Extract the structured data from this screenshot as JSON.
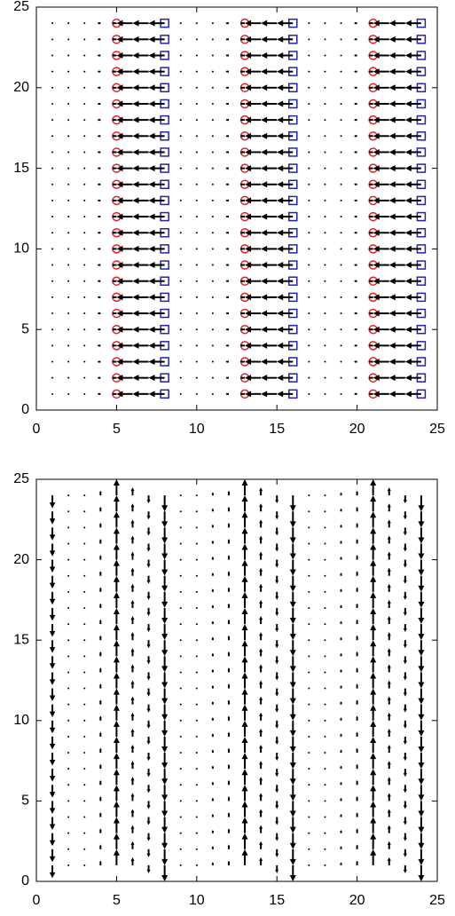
{
  "chart_data": [
    {
      "type": "quiver",
      "color": "#000000",
      "x": [
        1,
        2,
        3,
        4,
        5,
        6,
        7,
        8,
        9,
        10,
        11,
        12,
        13,
        14,
        15,
        16,
        17,
        18,
        19,
        20,
        21,
        22,
        23,
        24
      ],
      "y": [
        1,
        2,
        3,
        4,
        5,
        6,
        7,
        8,
        9,
        10,
        11,
        12,
        13,
        14,
        15,
        16,
        17,
        18,
        19,
        20,
        21,
        22,
        23,
        24
      ],
      "u": [
        -0.1,
        -0.1,
        -0.15,
        -0.2,
        -0.3,
        -1,
        -1,
        -1,
        -0.1,
        -0.1,
        -0.15,
        -0.2,
        -0.3,
        -1,
        -1,
        -1,
        -0.1,
        -0.1,
        -0.15,
        -0.2,
        -0.3,
        -1,
        -1,
        -1
      ],
      "v": [
        0,
        0,
        0,
        0,
        0,
        0,
        0,
        0,
        0,
        0,
        0,
        0,
        0,
        0,
        0,
        0,
        0,
        0,
        0,
        0,
        0,
        0,
        0,
        0
      ],
      "markers": [
        {
          "shape": "circle",
          "color": "#dd2222",
          "x": [
            5,
            13,
            21
          ]
        },
        {
          "shape": "square",
          "color": "#2222aa",
          "x": [
            8,
            16,
            24
          ]
        }
      ],
      "xlim": [
        0,
        25
      ],
      "ylim": [
        0,
        25
      ],
      "xticks": [
        0,
        5,
        10,
        15,
        20,
        25
      ],
      "yticks": [
        0,
        5,
        10,
        15,
        20,
        25
      ]
    },
    {
      "type": "quiver",
      "color": "#000000",
      "x": [
        1,
        2,
        3,
        4,
        5,
        6,
        7,
        8,
        9,
        10,
        11,
        12,
        13,
        14,
        15,
        16,
        17,
        18,
        19,
        20,
        21,
        22,
        23,
        24
      ],
      "y": [
        1,
        2,
        3,
        4,
        5,
        6,
        7,
        8,
        9,
        10,
        11,
        12,
        13,
        14,
        15,
        16,
        17,
        18,
        19,
        20,
        21,
        22,
        23,
        24
      ],
      "u": [
        0,
        0,
        0,
        0,
        0,
        0,
        0,
        0,
        0,
        0,
        0,
        0,
        0,
        0,
        0,
        0,
        0,
        0,
        0,
        0,
        0,
        0,
        0,
        0
      ],
      "v": [
        -0.8,
        -0.1,
        0.1,
        0.3,
        1,
        0.5,
        -0.5,
        -1,
        -0.1,
        0.1,
        0.2,
        0.3,
        1,
        0.5,
        -0.5,
        -1,
        -0.1,
        0.1,
        0.2,
        0.3,
        1,
        0.5,
        -0.5,
        -1
      ],
      "markers": [],
      "xlim": [
        0,
        25
      ],
      "ylim": [
        0,
        25
      ],
      "xticks": [
        0,
        5,
        10,
        15,
        20,
        25
      ],
      "yticks": [
        0,
        5,
        10,
        15,
        20,
        25
      ]
    }
  ]
}
